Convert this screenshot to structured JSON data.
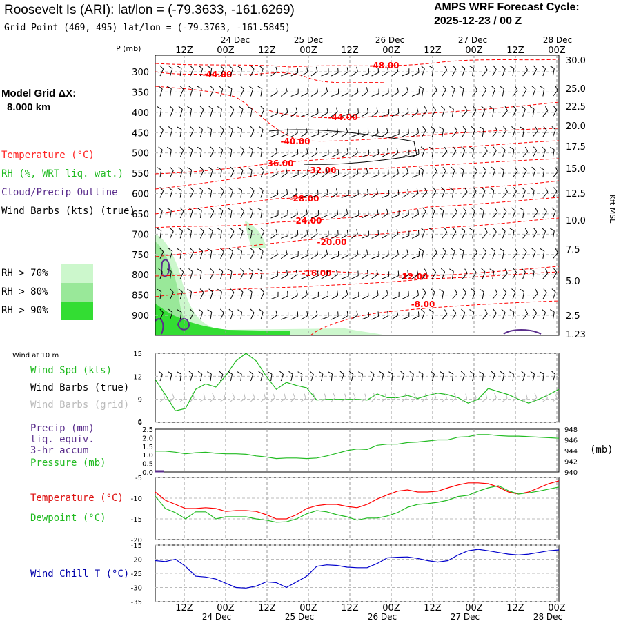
{
  "header": {
    "title": "Roosevelt Is (ARI):  lat/lon = (-79.3633, -161.6269)",
    "subtitle": "Grid Point (469, 495) lat/lon = (-79.3763, -161.5845)",
    "cycle_line1": "AMPS WRF Forecast Cycle:",
    "cycle_line2": "2025-12-23 / 00  Z"
  },
  "model_grid": {
    "line1": "Model Grid ΔX:",
    "line2": "8.000 km"
  },
  "legend": {
    "temperature": "Temperature (°C)",
    "rh": "RH (%, WRT liq. wat.)",
    "cloud": "Cloud/Precip Outline",
    "wind": "Wind Barbs (kts) (true)",
    "rh70": "RH > 70%",
    "rh80": "RH > 80%",
    "rh90": "RH > 90%"
  },
  "colors": {
    "temperature": "#ff0000",
    "rh_green": "#22bb22",
    "cloud": "#5a2d8c",
    "wind_chill": "#0000cc",
    "grid_barb": "#bbbbbb",
    "rh70": "#ccf7cc",
    "rh80": "#99e899",
    "rh90": "#33dd33"
  },
  "time_axis": {
    "ticks": [
      "12Z",
      "00Z",
      "12Z",
      "00Z",
      "12Z",
      "00Z",
      "12Z",
      "00Z",
      "12Z",
      "00Z"
    ],
    "dates": [
      "24 Dec",
      "25 Dec",
      "26 Dec",
      "27 Dec",
      "28 Dec"
    ]
  },
  "panel_labels": {
    "p_axis": "P (mb)",
    "kft": "Kft MSL",
    "wind10m": "Wind at 10 m",
    "wind_spd": "Wind Spd (kts)",
    "wind_barbs_true": "Wind Barbs (true)",
    "wind_barbs_grid": "Wind Barbs (grid)",
    "precip1": "Precip (mm)",
    "precip2": "liq. equiv.",
    "precip3": "3-hr accum",
    "pressure": "Pressure (mb)",
    "mb": "(mb)",
    "temp": "Temperature (°C)",
    "dewpoint": "Dewpoint (°C)",
    "windchill": "Wind Chill T (°C)"
  },
  "chart_data": [
    {
      "type": "heatmap",
      "name": "cross-section",
      "p_levels": [
        300,
        350,
        400,
        450,
        500,
        550,
        600,
        650,
        700,
        750,
        800,
        850,
        900
      ],
      "kft_ticks": [
        "30.0",
        "25.0",
        "22.5",
        "20.0",
        "17.5",
        "15.0",
        "12.5",
        "10.0",
        "7.5",
        "5.0",
        "2.5",
        "1.23"
      ],
      "temperature_contours": [
        {
          "label": "-48.00"
        },
        {
          "label": "-44.00"
        },
        {
          "label": "-44.00"
        },
        {
          "label": "-40.00"
        },
        {
          "label": "-36.00"
        },
        {
          "label": "-32.00"
        },
        {
          "label": "-28.00"
        },
        {
          "label": "-24.00"
        },
        {
          "label": "-20.00"
        },
        {
          "label": "-16.00"
        },
        {
          "label": "-12.00"
        },
        {
          "label": "-8.00"
        }
      ]
    },
    {
      "type": "line",
      "name": "wind speed 10 m",
      "y_ticks": [
        15,
        12,
        9,
        6
      ],
      "ylim": [
        6,
        15
      ],
      "x": [
        0,
        1,
        2,
        3,
        4,
        5,
        6,
        7,
        8,
        9,
        10,
        11,
        12,
        13,
        14,
        15,
        16,
        17,
        18,
        19,
        20,
        21,
        22,
        23,
        24,
        25,
        26,
        27,
        28,
        29,
        30,
        31,
        32,
        33,
        34,
        35,
        36,
        37,
        38,
        39,
        40
      ],
      "series": [
        {
          "values": [
            11.6,
            9.6,
            7.5,
            7.8,
            10.3,
            11.0,
            10.6,
            12.1,
            14.0,
            15.0,
            14.0,
            12.0,
            10.3,
            11.2,
            10.8,
            10.5,
            8.9,
            9.0,
            9.0,
            9.0,
            9.0,
            8.9,
            9.7,
            9.2,
            9.2,
            9.5,
            9.1,
            9.5,
            9.8,
            9.6,
            9.2,
            8.5,
            9.0,
            10.4,
            10.0,
            9.6,
            9.0,
            8.5,
            9.0,
            9.6,
            10.3
          ]
        }
      ]
    },
    {
      "type": "line",
      "name": "precip and pressure",
      "y_ticks_left": [
        "2.5",
        "2.0",
        "1.5",
        "1.0",
        "0.5",
        "0.0"
      ],
      "y_ticks_right": [
        "948",
        "946",
        "944",
        "942",
        "940"
      ],
      "ylim_left": [
        0,
        2.5
      ],
      "ylim_right": [
        940,
        948
      ],
      "x": [
        0,
        1,
        2,
        3,
        4,
        5,
        6,
        7,
        8,
        9,
        10,
        11,
        12,
        13,
        14,
        15,
        16,
        17,
        18,
        19,
        20,
        21,
        22,
        23,
        24,
        25,
        26,
        27,
        28,
        29,
        30,
        31,
        32,
        33,
        34,
        35,
        36,
        37,
        38,
        39,
        40
      ],
      "series": [
        {
          "values": [
            943.9,
            943.9,
            943.7,
            943.4,
            943.6,
            943.7,
            943.5,
            943.4,
            943.4,
            943.3,
            943.0,
            942.8,
            942.5,
            942.6,
            942.6,
            942.5,
            942.6,
            943.0,
            943.5,
            944.0,
            944.3,
            944.2,
            945.0,
            945.2,
            945.2,
            945.5,
            945.6,
            945.8,
            946.0,
            946.0,
            946.5,
            946.6,
            947.0,
            947.0,
            946.8,
            946.7,
            946.7,
            946.6,
            946.5,
            946.4,
            946.3
          ]
        },
        {
          "values": [
            0.05,
            0,
            0,
            0,
            0,
            0,
            0,
            0,
            0,
            0,
            0,
            0,
            0,
            0,
            0,
            0,
            0,
            0,
            0,
            0,
            0,
            0,
            0,
            0,
            0,
            0,
            0,
            0,
            0,
            0,
            0,
            0,
            0,
            0,
            0,
            0,
            0,
            0,
            0,
            0,
            0
          ]
        }
      ]
    },
    {
      "type": "line",
      "name": "temperature and dewpoint",
      "y_ticks": [
        -5,
        -10,
        -15,
        -20
      ],
      "ylim": [
        -20,
        -5
      ],
      "x": [
        0,
        1,
        2,
        3,
        4,
        5,
        6,
        7,
        8,
        9,
        10,
        11,
        12,
        13,
        14,
        15,
        16,
        17,
        18,
        19,
        20,
        21,
        22,
        23,
        24,
        25,
        26,
        27,
        28,
        29,
        30,
        31,
        32,
        33,
        34,
        35,
        36,
        37,
        38,
        39,
        40
      ],
      "series": [
        {
          "values": [
            -8.5,
            -10.5,
            -11.5,
            -12.5,
            -12.5,
            -12.3,
            -12.5,
            -13.2,
            -13.0,
            -13.0,
            -13.2,
            -14.0,
            -15.0,
            -15.0,
            -14.0,
            -12.5,
            -11.8,
            -11.5,
            -11.5,
            -12.0,
            -12.3,
            -11.5,
            -10.2,
            -9.2,
            -8.3,
            -8.0,
            -8.5,
            -8.5,
            -8.3,
            -7.5,
            -6.8,
            -6.3,
            -6.3,
            -6.5,
            -7.3,
            -8.5,
            -9.0,
            -8.5,
            -7.5,
            -6.5,
            -5.8
          ]
        },
        {
          "values": [
            -9.5,
            -12.5,
            -13.5,
            -15.0,
            -13.3,
            -13.3,
            -15.0,
            -14.5,
            -14.5,
            -14.5,
            -15.0,
            -15.3,
            -15.8,
            -15.7,
            -15.0,
            -13.8,
            -13.0,
            -13.3,
            -14.0,
            -14.5,
            -15.3,
            -14.8,
            -14.8,
            -14.3,
            -13.5,
            -12.2,
            -11.5,
            -11.3,
            -11.0,
            -10.5,
            -9.6,
            -9.3,
            -8.3,
            -7.5,
            -7.0,
            -8.2,
            -9.0,
            -8.7,
            -8.3,
            -7.8,
            -7.3
          ]
        }
      ]
    },
    {
      "type": "line",
      "name": "wind chill",
      "y_ticks": [
        -15,
        -20,
        -25,
        -30,
        -35
      ],
      "ylim": [
        -35,
        -15
      ],
      "x": [
        0,
        1,
        2,
        3,
        4,
        5,
        6,
        7,
        8,
        9,
        10,
        11,
        12,
        13,
        14,
        15,
        16,
        17,
        18,
        19,
        20,
        21,
        22,
        23,
        24,
        25,
        26,
        27,
        28,
        29,
        30,
        31,
        32,
        33,
        34,
        35,
        36,
        37,
        38,
        39,
        40
      ],
      "series": [
        {
          "values": [
            -20.5,
            -20.8,
            -20.0,
            -22.5,
            -26.0,
            -26.3,
            -27.0,
            -28.5,
            -30.0,
            -30.2,
            -29.5,
            -28.0,
            -28.3,
            -30.0,
            -28.0,
            -26.0,
            -22.5,
            -22.0,
            -22.2,
            -22.8,
            -23.0,
            -23.0,
            -21.5,
            -19.5,
            -19.3,
            -19.2,
            -19.7,
            -20.5,
            -21.0,
            -20.5,
            -18.5,
            -17.0,
            -16.5,
            -17.0,
            -17.6,
            -18.2,
            -18.5,
            -18.2,
            -17.6,
            -17.0,
            -16.7
          ]
        }
      ]
    }
  ]
}
